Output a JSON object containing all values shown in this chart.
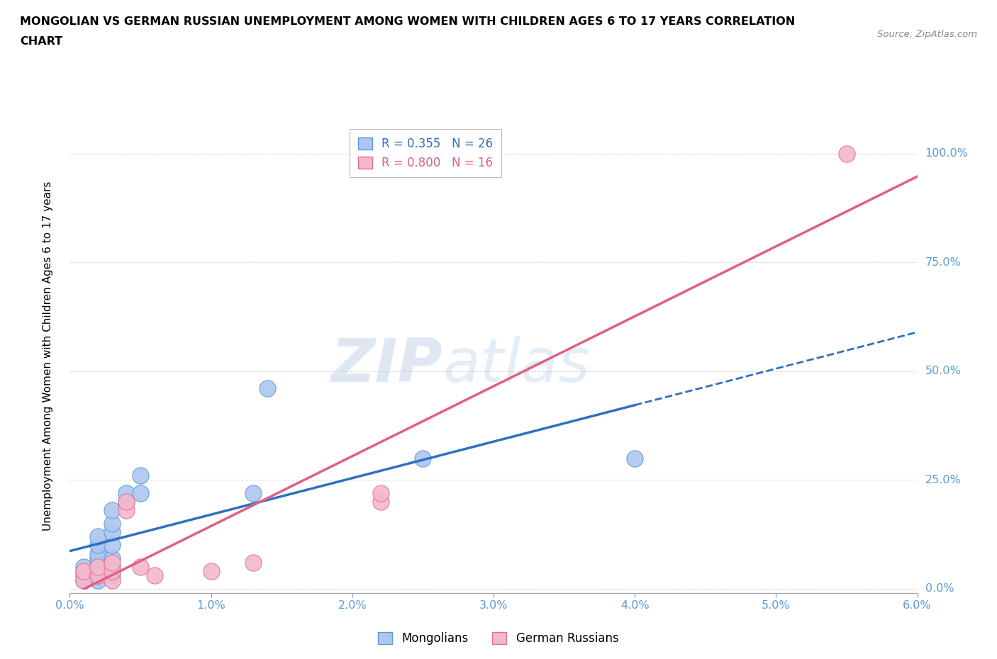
{
  "title_line1": "MONGOLIAN VS GERMAN RUSSIAN UNEMPLOYMENT AMONG WOMEN WITH CHILDREN AGES 6 TO 17 YEARS CORRELATION",
  "title_line2": "CHART",
  "source_text": "Source: ZipAtlas.com",
  "ylabel": "Unemployment Among Women with Children Ages 6 to 17 years",
  "xlim": [
    0.0,
    0.06
  ],
  "ylim": [
    -0.01,
    1.08
  ],
  "xticks": [
    0.0,
    0.01,
    0.02,
    0.03,
    0.04,
    0.05,
    0.06
  ],
  "xticklabels": [
    "0.0%",
    "1.0%",
    "2.0%",
    "3.0%",
    "4.0%",
    "5.0%",
    "6.0%"
  ],
  "yticks": [
    0.0,
    0.25,
    0.5,
    0.75,
    1.0
  ],
  "yticklabels": [
    "0.0%",
    "25.0%",
    "50.0%",
    "75.0%",
    "100.0%"
  ],
  "ytick_color": "#5b9bd5",
  "xtick_color": "#5b9bd5",
  "grid_color": "#dddddd",
  "background_color": "#ffffff",
  "mongolian_fill_color": "#aec6f0",
  "mongolian_edge_color": "#5b9bd5",
  "german_fill_color": "#f4b8cc",
  "german_edge_color": "#e07090",
  "mongolian_line_color": "#3070c0",
  "german_line_color": "#e06080",
  "mongolian_R": 0.355,
  "mongolian_N": 26,
  "german_R": 0.8,
  "german_N": 16,
  "mongolian_x": [
    0.001,
    0.001,
    0.001,
    0.001,
    0.002,
    0.002,
    0.002,
    0.002,
    0.002,
    0.002,
    0.002,
    0.003,
    0.003,
    0.003,
    0.003,
    0.003,
    0.003,
    0.003,
    0.004,
    0.004,
    0.005,
    0.005,
    0.013,
    0.014,
    0.025,
    0.04
  ],
  "mongolian_y": [
    0.02,
    0.03,
    0.04,
    0.05,
    0.02,
    0.03,
    0.05,
    0.07,
    0.08,
    0.1,
    0.12,
    0.03,
    0.05,
    0.07,
    0.1,
    0.13,
    0.15,
    0.18,
    0.2,
    0.22,
    0.22,
    0.26,
    0.22,
    0.46,
    0.3,
    0.3
  ],
  "german_x": [
    0.001,
    0.001,
    0.002,
    0.002,
    0.003,
    0.003,
    0.003,
    0.004,
    0.004,
    0.005,
    0.006,
    0.01,
    0.013,
    0.022,
    0.022,
    0.055
  ],
  "german_y": [
    0.02,
    0.04,
    0.03,
    0.05,
    0.02,
    0.04,
    0.06,
    0.18,
    0.2,
    0.05,
    0.03,
    0.04,
    0.06,
    0.2,
    0.22,
    1.0
  ],
  "watermark_zip": "ZIP",
  "watermark_atlas": "atlas"
}
